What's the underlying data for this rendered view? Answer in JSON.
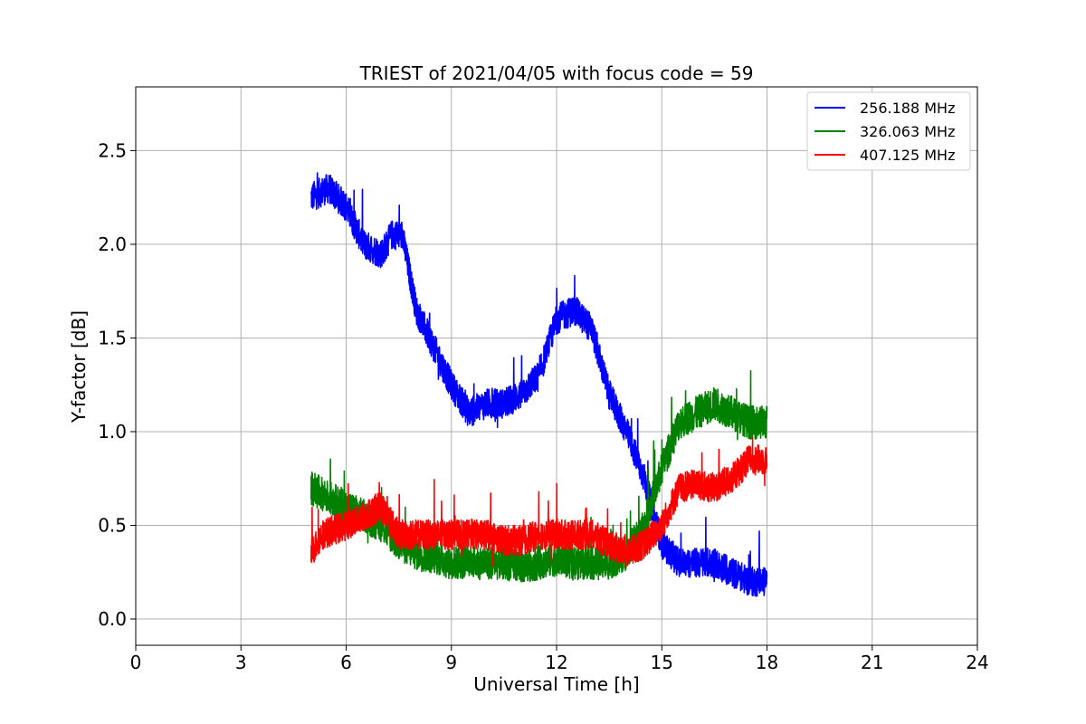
{
  "chart_data": {
    "type": "line",
    "title": "TRIEST of 2021/04/05 with focus code = 59",
    "xlabel": "Universal Time [h]",
    "ylabel": "Y-factor [dB]",
    "xlim": [
      0,
      24
    ],
    "ylim": [
      -0.14,
      2.84
    ],
    "xticks": [
      0,
      3,
      6,
      9,
      12,
      15,
      18,
      21,
      24
    ],
    "yticks": [
      0.0,
      0.5,
      1.0,
      1.5,
      2.0,
      2.5
    ],
    "ytick_labels": [
      "0.0",
      "0.5",
      "1.0",
      "1.5",
      "2.0",
      "2.5"
    ],
    "grid": true,
    "legend_position": "top-right",
    "series": [
      {
        "name": "256.188 MHz",
        "color": "#0000ff",
        "noise": 0.08,
        "x": [
          5.0,
          5.5,
          6.0,
          6.5,
          7.0,
          7.3,
          7.6,
          8.0,
          8.5,
          9.0,
          9.5,
          10.0,
          10.5,
          11.0,
          11.5,
          12.0,
          12.5,
          13.0,
          13.5,
          14.0,
          14.5,
          15.0,
          15.5,
          16.0,
          16.5,
          17.0,
          17.5,
          18.0
        ],
        "y": [
          2.25,
          2.3,
          2.2,
          2.0,
          1.95,
          2.05,
          2.05,
          1.65,
          1.45,
          1.25,
          1.1,
          1.15,
          1.15,
          1.2,
          1.3,
          1.6,
          1.65,
          1.55,
          1.2,
          1.0,
          0.75,
          0.4,
          0.3,
          0.3,
          0.3,
          0.25,
          0.2,
          0.2
        ]
      },
      {
        "name": "326.063 MHz",
        "color": "#008000",
        "noise": 0.09,
        "x": [
          5.0,
          5.5,
          6.0,
          6.5,
          7.0,
          7.5,
          8.0,
          8.5,
          9.0,
          9.5,
          10.0,
          10.5,
          11.0,
          11.5,
          12.0,
          12.5,
          13.0,
          13.5,
          14.0,
          14.5,
          15.0,
          15.5,
          16.0,
          16.5,
          17.0,
          17.5,
          18.0
        ],
        "y": [
          0.7,
          0.65,
          0.6,
          0.55,
          0.5,
          0.4,
          0.35,
          0.33,
          0.3,
          0.3,
          0.3,
          0.3,
          0.28,
          0.3,
          0.32,
          0.3,
          0.3,
          0.3,
          0.35,
          0.5,
          0.8,
          1.05,
          1.1,
          1.15,
          1.1,
          1.05,
          1.05
        ]
      },
      {
        "name": "407.125 MHz",
        "color": "#ff0000",
        "noise": 0.08,
        "x": [
          5.0,
          5.3,
          6.0,
          6.5,
          7.0,
          7.5,
          8.0,
          8.5,
          9.0,
          9.5,
          10.0,
          10.5,
          11.0,
          11.5,
          12.0,
          12.5,
          13.0,
          13.5,
          14.0,
          14.5,
          15.0,
          15.5,
          16.0,
          16.5,
          17.0,
          17.5,
          18.0
        ],
        "y": [
          0.35,
          0.45,
          0.5,
          0.55,
          0.6,
          0.45,
          0.45,
          0.45,
          0.45,
          0.45,
          0.45,
          0.42,
          0.42,
          0.45,
          0.45,
          0.45,
          0.45,
          0.4,
          0.35,
          0.4,
          0.5,
          0.7,
          0.72,
          0.7,
          0.75,
          0.85,
          0.85
        ]
      }
    ]
  }
}
